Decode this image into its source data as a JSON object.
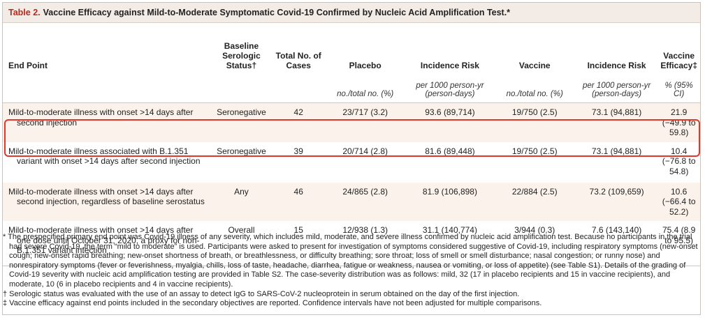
{
  "title": {
    "number": "Table 2.",
    "text": "Vaccine Efficacy against Mild-to-Moderate Symptomatic Covid-19 Confirmed by Nucleic Acid Amplification Test.*"
  },
  "columns": {
    "end_point": "End Point",
    "serologic": "Baseline Serologic Status†",
    "total": "Total No. of Cases",
    "placebo": "Placebo",
    "incidence_placebo": "Incidence Risk",
    "vaccine": "Vaccine",
    "incidence_vaccine": "Incidence Risk",
    "efficacy": "Vaccine Efficacy‡"
  },
  "subheaders": {
    "placebo": "no./total no. (%)",
    "incidence_placebo": "per 1000 person-yr (person-days)",
    "vaccine": "no./total no. (%)",
    "incidence_vaccine": "per 1000 person-yr (person-days)",
    "efficacy": "% (95% CI)"
  },
  "rows": [
    {
      "end_point": "Mild-to-moderate illness with onset >14 days after second injection",
      "serologic": "Seronegative",
      "total": "42",
      "placebo": "23/717 (3.2)",
      "incidence_placebo": "93.6 (89,714)",
      "vaccine": "19/750 (2.5)",
      "incidence_vaccine": "73.1 (94,881)",
      "efficacy": "21.9 (−49.9 to 59.8)"
    },
    {
      "end_point": "Mild-to-moderate illness associated with B.1.351 variant with onset >14 days after second injection",
      "serologic": "Seronegative",
      "total": "39",
      "placebo": "20/714 (2.8)",
      "incidence_placebo": "81.6 (89,448)",
      "vaccine": "19/750 (2.5)",
      "incidence_vaccine": "73.1 (94,881)",
      "efficacy": "10.4 (−76.8 to 54.8)"
    },
    {
      "end_point": "Mild-to-moderate illness with onset >14 days after second injection, regardless of baseline serostatus",
      "serologic": "Any",
      "total": "46",
      "placebo": "24/865 (2.8)",
      "incidence_placebo": "81.9 (106,898)",
      "vaccine": "22/884 (2.5)",
      "incidence_vaccine": "73.2 (109,659)",
      "efficacy": "10.6 (−66.4 to 52.2)"
    },
    {
      "end_point": "Mild-to-moderate illness with onset >14 days after one dose until October 31, 2020, a proxy for non-B.1.351 variant infection",
      "serologic": "Overall",
      "total": "15",
      "placebo": "12/938 (1.3)",
      "incidence_placebo": "31.1 (140,774)",
      "vaccine": "3/944 (0.3)",
      "incidence_vaccine": "7.6 (143,140)",
      "efficacy": "75.4 (8.9 to 95.5)"
    }
  ],
  "footnotes": [
    "* The prespecified primary end point was Covid-19 illness of any severity, which includes mild, moderate, and severe illness confirmed by nucleic acid amplification test. Because no participants in the trial had severe Covid-19, the term “mild to moderate” is used. Participants were asked to present for investigation of symptoms considered suggestive of Covid-19, including respiratory symptoms (new-onset cough; new-onset rapid breathing; new-onset shortness of breath, or breathlessness, or difficulty breathing; sore throat; loss of smell or smell disturbance; nasal congestion; or runny nose) and nonrespiratory symptoms (fever or feverishness, myalgia, chills, loss of taste, headache, diarrhea, fatigue or weakness, nausea or vomiting, or loss of appetite) (see Table S1). Details of the grading of Covid-19 severity with nucleic acid amplification testing are provided in Table S2. The case-severity distribution was as follows: mild, 32 (17 in placebo recipients and 15 in vaccine recipients), and moderate, 10 (6 in placebo recipients and 4 in vaccine recipients).",
    "† Serologic status was evaluated with the use of an assay to detect IgG to SARS-CoV-2 nucleoprotein in serum obtained on the day of the first injection.",
    "‡ Vaccine efficacy against end points included in the secondary objectives are reported. Confidence intervals have not been adjusted for multiple comparisons."
  ],
  "colors": {
    "title_number": "#b52a1d",
    "title_bar_bg": "#f3ece6",
    "row_shade": "#fbf3eb",
    "highlight_box": "#e0372d"
  }
}
